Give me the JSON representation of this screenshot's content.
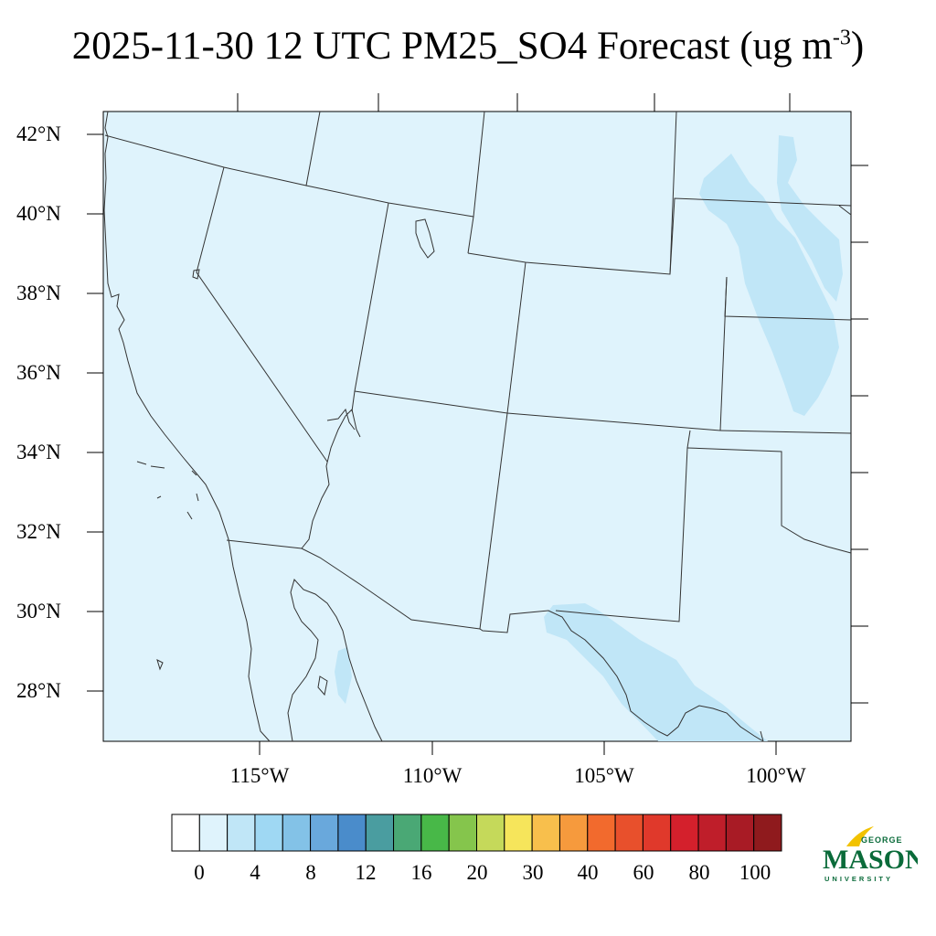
{
  "title": {
    "main": "2025-11-30 12 UTC PM25_SO4 Forecast (ug m",
    "sup": "-3",
    "close": ")"
  },
  "map": {
    "background_color": "#dff3fc",
    "plume_color": "#c0e6f7",
    "boundary_color": "#333333",
    "lat_labels": [
      "42°N",
      "40°N",
      "38°N",
      "36°N",
      "34°N",
      "32°N",
      "30°N",
      "28°N"
    ],
    "lon_labels": [
      "115°W",
      "110°W",
      "105°W",
      "100°W"
    ]
  },
  "colorbar": {
    "colors": [
      "#ffffff",
      "#dff3fc",
      "#c0e6f7",
      "#9fd8f3",
      "#83c2e7",
      "#69a8dc",
      "#4a8ccb",
      "#4a9da0",
      "#4aa875",
      "#48b848",
      "#85c54c",
      "#c5d95a",
      "#f6e55b",
      "#f8bf4c",
      "#f69a3d",
      "#f26a2d",
      "#e8502c",
      "#e0392b",
      "#d4202c",
      "#bf1e2a",
      "#a81b25",
      "#8f1a1d"
    ],
    "labels": [
      "0",
      "4",
      "8",
      "12",
      "16",
      "20",
      "30",
      "40",
      "60",
      "80",
      "100"
    ]
  },
  "logo": {
    "line1": "GEORGE",
    "line2": "MASON",
    "line3": "UNIVERSITY",
    "green": "#0a6b3a",
    "gold": "#f2c200"
  }
}
